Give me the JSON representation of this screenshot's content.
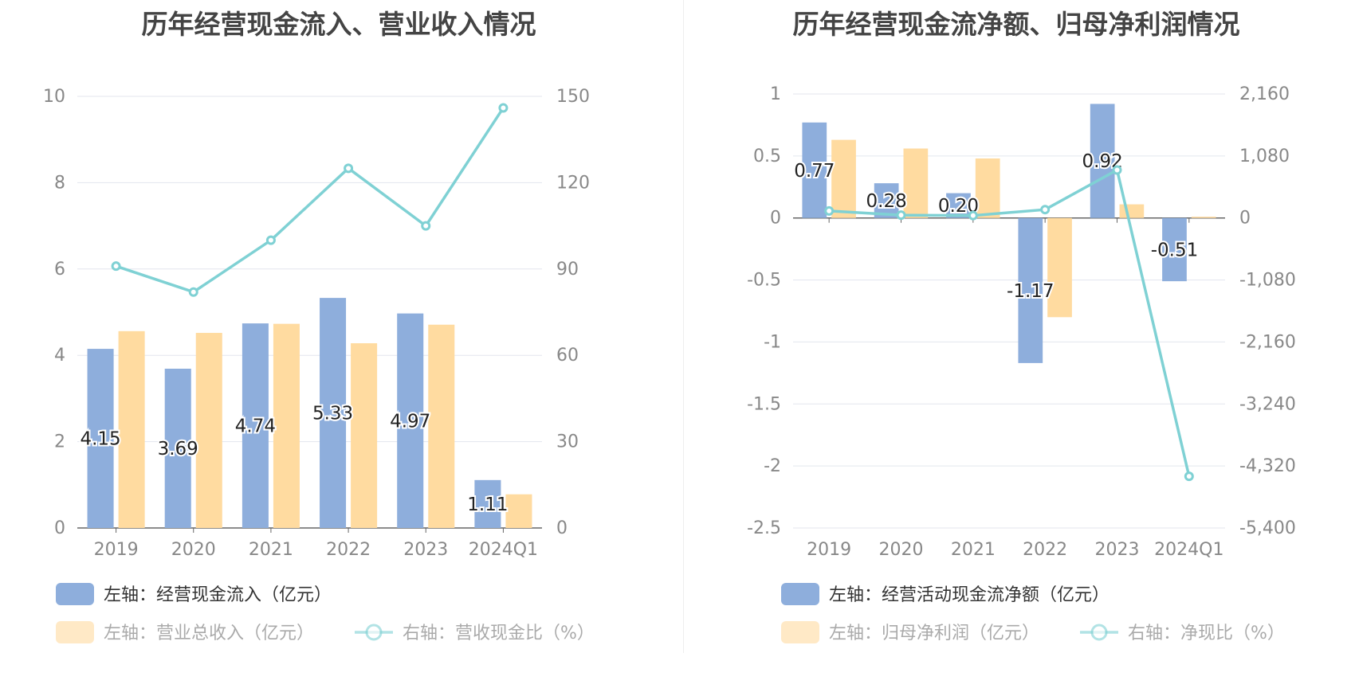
{
  "charts": [
    {
      "title": "历年经营现金流入、营业收入情况",
      "legend": [
        {
          "kind": "bar",
          "label": "左轴：经营现金流入（亿元）",
          "color": "#8eaedc"
        },
        {
          "kind": "bar",
          "label": "左轴：营业总收入（亿元）",
          "color": "#ffdba0"
        },
        {
          "kind": "line",
          "label": "右轴：营收现金比（%）",
          "color": "#7fd1d4"
        }
      ]
    },
    {
      "title": "历年经营现金流净额、归母净利润情况",
      "legend": [
        {
          "kind": "bar",
          "label": "左轴：经营活动现金流净额（亿元）",
          "color": "#8eaedc"
        },
        {
          "kind": "bar",
          "label": "左轴：归母净利润（亿元）",
          "color": "#ffdba0"
        },
        {
          "kind": "line",
          "label": "右轴：净现比（%）",
          "color": "#7fd1d4"
        }
      ]
    }
  ],
  "chart_data": [
    {
      "type": "bar",
      "title": "历年经营现金流入、营业收入情况",
      "categories": [
        "2019",
        "2020",
        "2021",
        "2022",
        "2023",
        "2024Q1"
      ],
      "left_axis": {
        "min": 0,
        "max": 10,
        "ticks": [
          "0",
          "2",
          "4",
          "6",
          "8",
          "10"
        ]
      },
      "right_axis": {
        "min": 0,
        "max": 150,
        "ticks": [
          "0",
          "30",
          "60",
          "90",
          "120",
          "150"
        ]
      },
      "grid": true,
      "legend_position": "bottom",
      "series": [
        {
          "name": "左轴：经营现金流入（亿元）",
          "type": "bar",
          "axis": "left",
          "color": "#8eaedc",
          "values": [
            4.15,
            3.69,
            4.74,
            5.33,
            4.97,
            1.11
          ],
          "labels": [
            "4.15",
            "3.69",
            "4.74",
            "5.33",
            "4.97",
            "1.11"
          ]
        },
        {
          "name": "左轴：营业总收入（亿元）",
          "type": "bar",
          "axis": "left",
          "color": "#ffdba0",
          "values": [
            4.56,
            4.52,
            4.73,
            4.28,
            4.71,
            0.78
          ]
        },
        {
          "name": "右轴：营收现金比（%）",
          "type": "line",
          "axis": "right",
          "color": "#7fd1d4",
          "values": [
            91,
            82,
            100,
            125,
            105,
            146
          ]
        }
      ]
    },
    {
      "type": "bar",
      "title": "历年经营现金流净额、归母净利润情况",
      "categories": [
        "2019",
        "2020",
        "2021",
        "2022",
        "2023",
        "2024Q1"
      ],
      "left_axis": {
        "min": -2.5,
        "max": 1,
        "ticks": [
          "-2.5",
          "-2",
          "-1.5",
          "-1",
          "-0.5",
          "0",
          "0.5",
          "1"
        ]
      },
      "right_axis": {
        "min": -5400,
        "max": 2160,
        "ticks": [
          "-5,400",
          "-4,320",
          "-3,240",
          "-2,160",
          "-1,080",
          "0",
          "1,080",
          "2,160"
        ]
      },
      "grid": true,
      "legend_position": "bottom",
      "series": [
        {
          "name": "左轴：经营活动现金流净额（亿元）",
          "type": "bar",
          "axis": "left",
          "color": "#8eaedc",
          "values": [
            0.77,
            0.28,
            0.2,
            -1.17,
            0.92,
            -0.51
          ],
          "labels": [
            "0.77",
            "0.28",
            "0.20",
            "-1.17",
            "0.92",
            "-0.51"
          ]
        },
        {
          "name": "左轴：归母净利润（亿元）",
          "type": "bar",
          "axis": "left",
          "color": "#ffdba0",
          "values": [
            0.63,
            0.56,
            0.48,
            -0.8,
            0.11,
            0.01
          ]
        },
        {
          "name": "右轴：净现比（%）",
          "type": "line",
          "axis": "right",
          "color": "#7fd1d4",
          "values": [
            122,
            50,
            42,
            146,
            836,
            -4500
          ]
        }
      ]
    }
  ]
}
